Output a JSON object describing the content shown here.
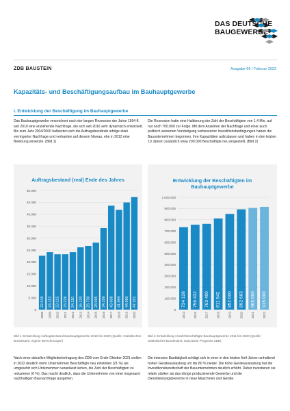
{
  "logo": {
    "line1": "DAS DEUTSCHE",
    "line2": "BAUGEWERBE"
  },
  "header": {
    "section": "ZDB BAUSTEIN",
    "issue": "Ausgabe 66 / Februar 2023"
  },
  "title": "Kapazitäts- und Beschäftigungsaufbau im Bauhauptgewerbe",
  "subtitle": "I. Entwicklung der Beschäftigung im Bauhauptgewerbe",
  "paragraphs": {
    "p1": "Das Bauhauptgewerbe verzeichnet nach der langen Rezession der Jahre 1994 ff. seit 2010 eine anziehende Nachfrage, die sich seit 2016 sehr dynamisch entwickelt. Bis zum Jahr 2004/2006 halbierten sich die Auftragsbestände infolge stark verringerter Nachfrage und verharrten auf diesem Niveau, ehe in 2012 eine Belebung einsetzte. (Bild 1)",
    "p2": "Die Rezession hatte eine Halbierung der Zahl der Beschäftigten von 1,4 Mio. auf nur noch 700.000 zur Folge. Mit dem Anziehen der Nachfrage und einer auch politisch avisierten Verstetigung verbesserter Investitionsbedingungen haben die Bauunternehmen begonnen, ihre Kapazitäten aufzubauen und haben in den letzten 10 Jahren zusätzlich etwa 200.000 Beschäftigte neu eingestellt. (Bild 2)",
    "p3": "Nach einer aktuellen Mitgliederbefragung des ZDB vom Ende Oktober 2021 wollen in 2022 deutlich mehr Unternehmen Beschäftigte neu einstellen (21 %) als umgekehrt sich Unternehmen veranlasst sehen, die Zahl der Beschäftigten zu reduzieren (6 %). Das macht deutlich, dass die Unternehmen von einer insgesamt nachhaltigen Baunachfrage ausgehen.",
    "p4": "Die intensive Bautätigkeit schlägt sich in einer in den letzten fünf Jahren anhaltend hohen Geräteauslastung um die 80 % nieder. Die hohe Geräteauslastung hat die Investitionsbereitschaft der Bauunternehmen deutlich erhöht. Daher investieren sie relativ stärker als das übrige produzierende Gewerbe und die Dienstleistungsbereiche in neue Maschinen und Geräte."
  },
  "captions": {
    "c1": "Bild 1: Entwicklung Auftragsbestand Bauhauptgewerbe 2010 bis 2020 (Quelle: Statistisches Bundesamt, eigene Berechnungen)",
    "c2": "Bild 2: Entwicklung Anzahl Beschäftigte Bauhauptgewerbe 2011 bis 2020 (Quelle: Statistisches Bundesamt; 2021/2022 Prognose ZDB)"
  },
  "colors": {
    "accent": "#1a8ac6",
    "bar": "#1a8ac6",
    "bar_forecast": "#6bb5dd",
    "panel": "#f2f2f2"
  },
  "chart_data": [
    {
      "type": "bar",
      "title": "Auftragsbestand (real) Ende des Jahres",
      "categories": [
        "2008",
        "2009",
        "2010",
        "2011",
        "2012",
        "2013",
        "2014",
        "2015",
        "2016",
        "2017",
        "2018",
        "2019",
        "2020"
      ],
      "values": [
        22616,
        24113,
        23215,
        23226,
        24110,
        26130,
        26730,
        28095,
        34199,
        43608,
        41869,
        44960,
        47201
      ],
      "data_labels": [
        "22.616",
        "24.113",
        "23.215",
        "23.226",
        "24.110",
        "26.130",
        "26.730",
        "28.095",
        "34.199",
        "43.608",
        "41.869",
        "44.960",
        "47.201"
      ],
      "ylim": [
        0,
        50000
      ],
      "yticks": [
        "0",
        "5.000",
        "10.000",
        "15.000",
        "20.000",
        "25.000",
        "30.000",
        "35.000",
        "40.000",
        "45.000",
        "50.000"
      ],
      "xlabel": "",
      "ylabel": "",
      "grid": true
    },
    {
      "type": "bar",
      "title": "Entwicklung der Beschäftigten im Bauhauptgewerbe",
      "categories": [
        "2013",
        "2015",
        "2017",
        "2018",
        "2019",
        "2020",
        "2021",
        "2022"
      ],
      "values": [
        734128,
        756432,
        763400,
        811542,
        852000,
        892663,
        905000,
        915000
      ],
      "data_labels": [
        "734 128",
        "756 432",
        "763 400",
        "811 542",
        "852 000",
        "892 663",
        "905 000",
        "915 000"
      ],
      "forecast_from_index": 6,
      "ylim": [
        0,
        1000000
      ],
      "yticks": [
        "0",
        "100.000",
        "200.000",
        "300.000",
        "400.000",
        "500.000",
        "600.000",
        "700.000",
        "800.000",
        "900.000",
        "1.000.000"
      ],
      "xlabel": "",
      "ylabel": "",
      "grid": true
    }
  ]
}
